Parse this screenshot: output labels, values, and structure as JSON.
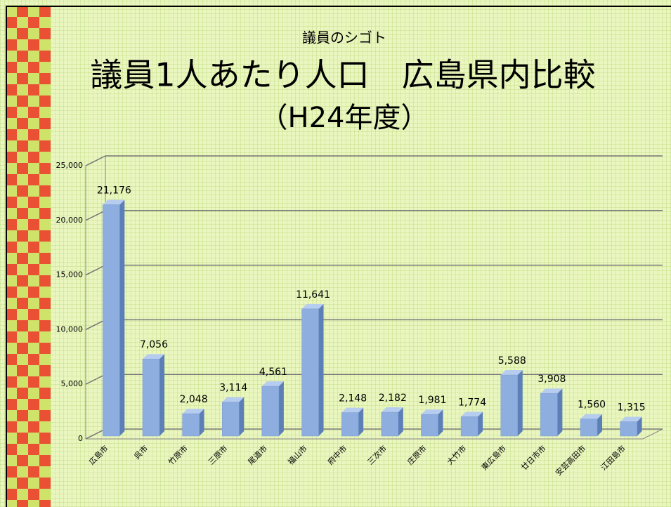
{
  "chart_data": {
    "type": "bar",
    "subtitle": "議員のシゴト",
    "title": "議員1人あたり人口　広島県内比較",
    "title_line2": "（H24年度）",
    "categories": [
      "広島市",
      "呉市",
      "竹原市",
      "三原市",
      "尾道市",
      "福山市",
      "府中市",
      "三次市",
      "庄原市",
      "大竹市",
      "東広島市",
      "廿日市市",
      "安芸高田市",
      "江田島市"
    ],
    "values": [
      21176,
      7056,
      2048,
      3114,
      4561,
      11641,
      2148,
      2182,
      1981,
      1774,
      5588,
      3908,
      1560,
      1315
    ],
    "value_labels": [
      "21,176",
      "7,056",
      "2,048",
      "3,114",
      "4,561",
      "11,641",
      "2,148",
      "2,182",
      "1,981",
      "1,774",
      "5,588",
      "3,908",
      "1,560",
      "1,315"
    ],
    "color": "#8eaee0",
    "ylim": [
      0,
      25000
    ],
    "yticks": [
      0,
      {
        "value": 5000,
        "label": "5,000"
      },
      {
        "value": 10000,
        "label": "10,000"
      },
      {
        "value": 15000,
        "label": "15,000"
      },
      {
        "value": 20000,
        "label": "20,000"
      },
      {
        "value": 25000,
        "label": "25,000"
      }
    ],
    "grid": true
  }
}
